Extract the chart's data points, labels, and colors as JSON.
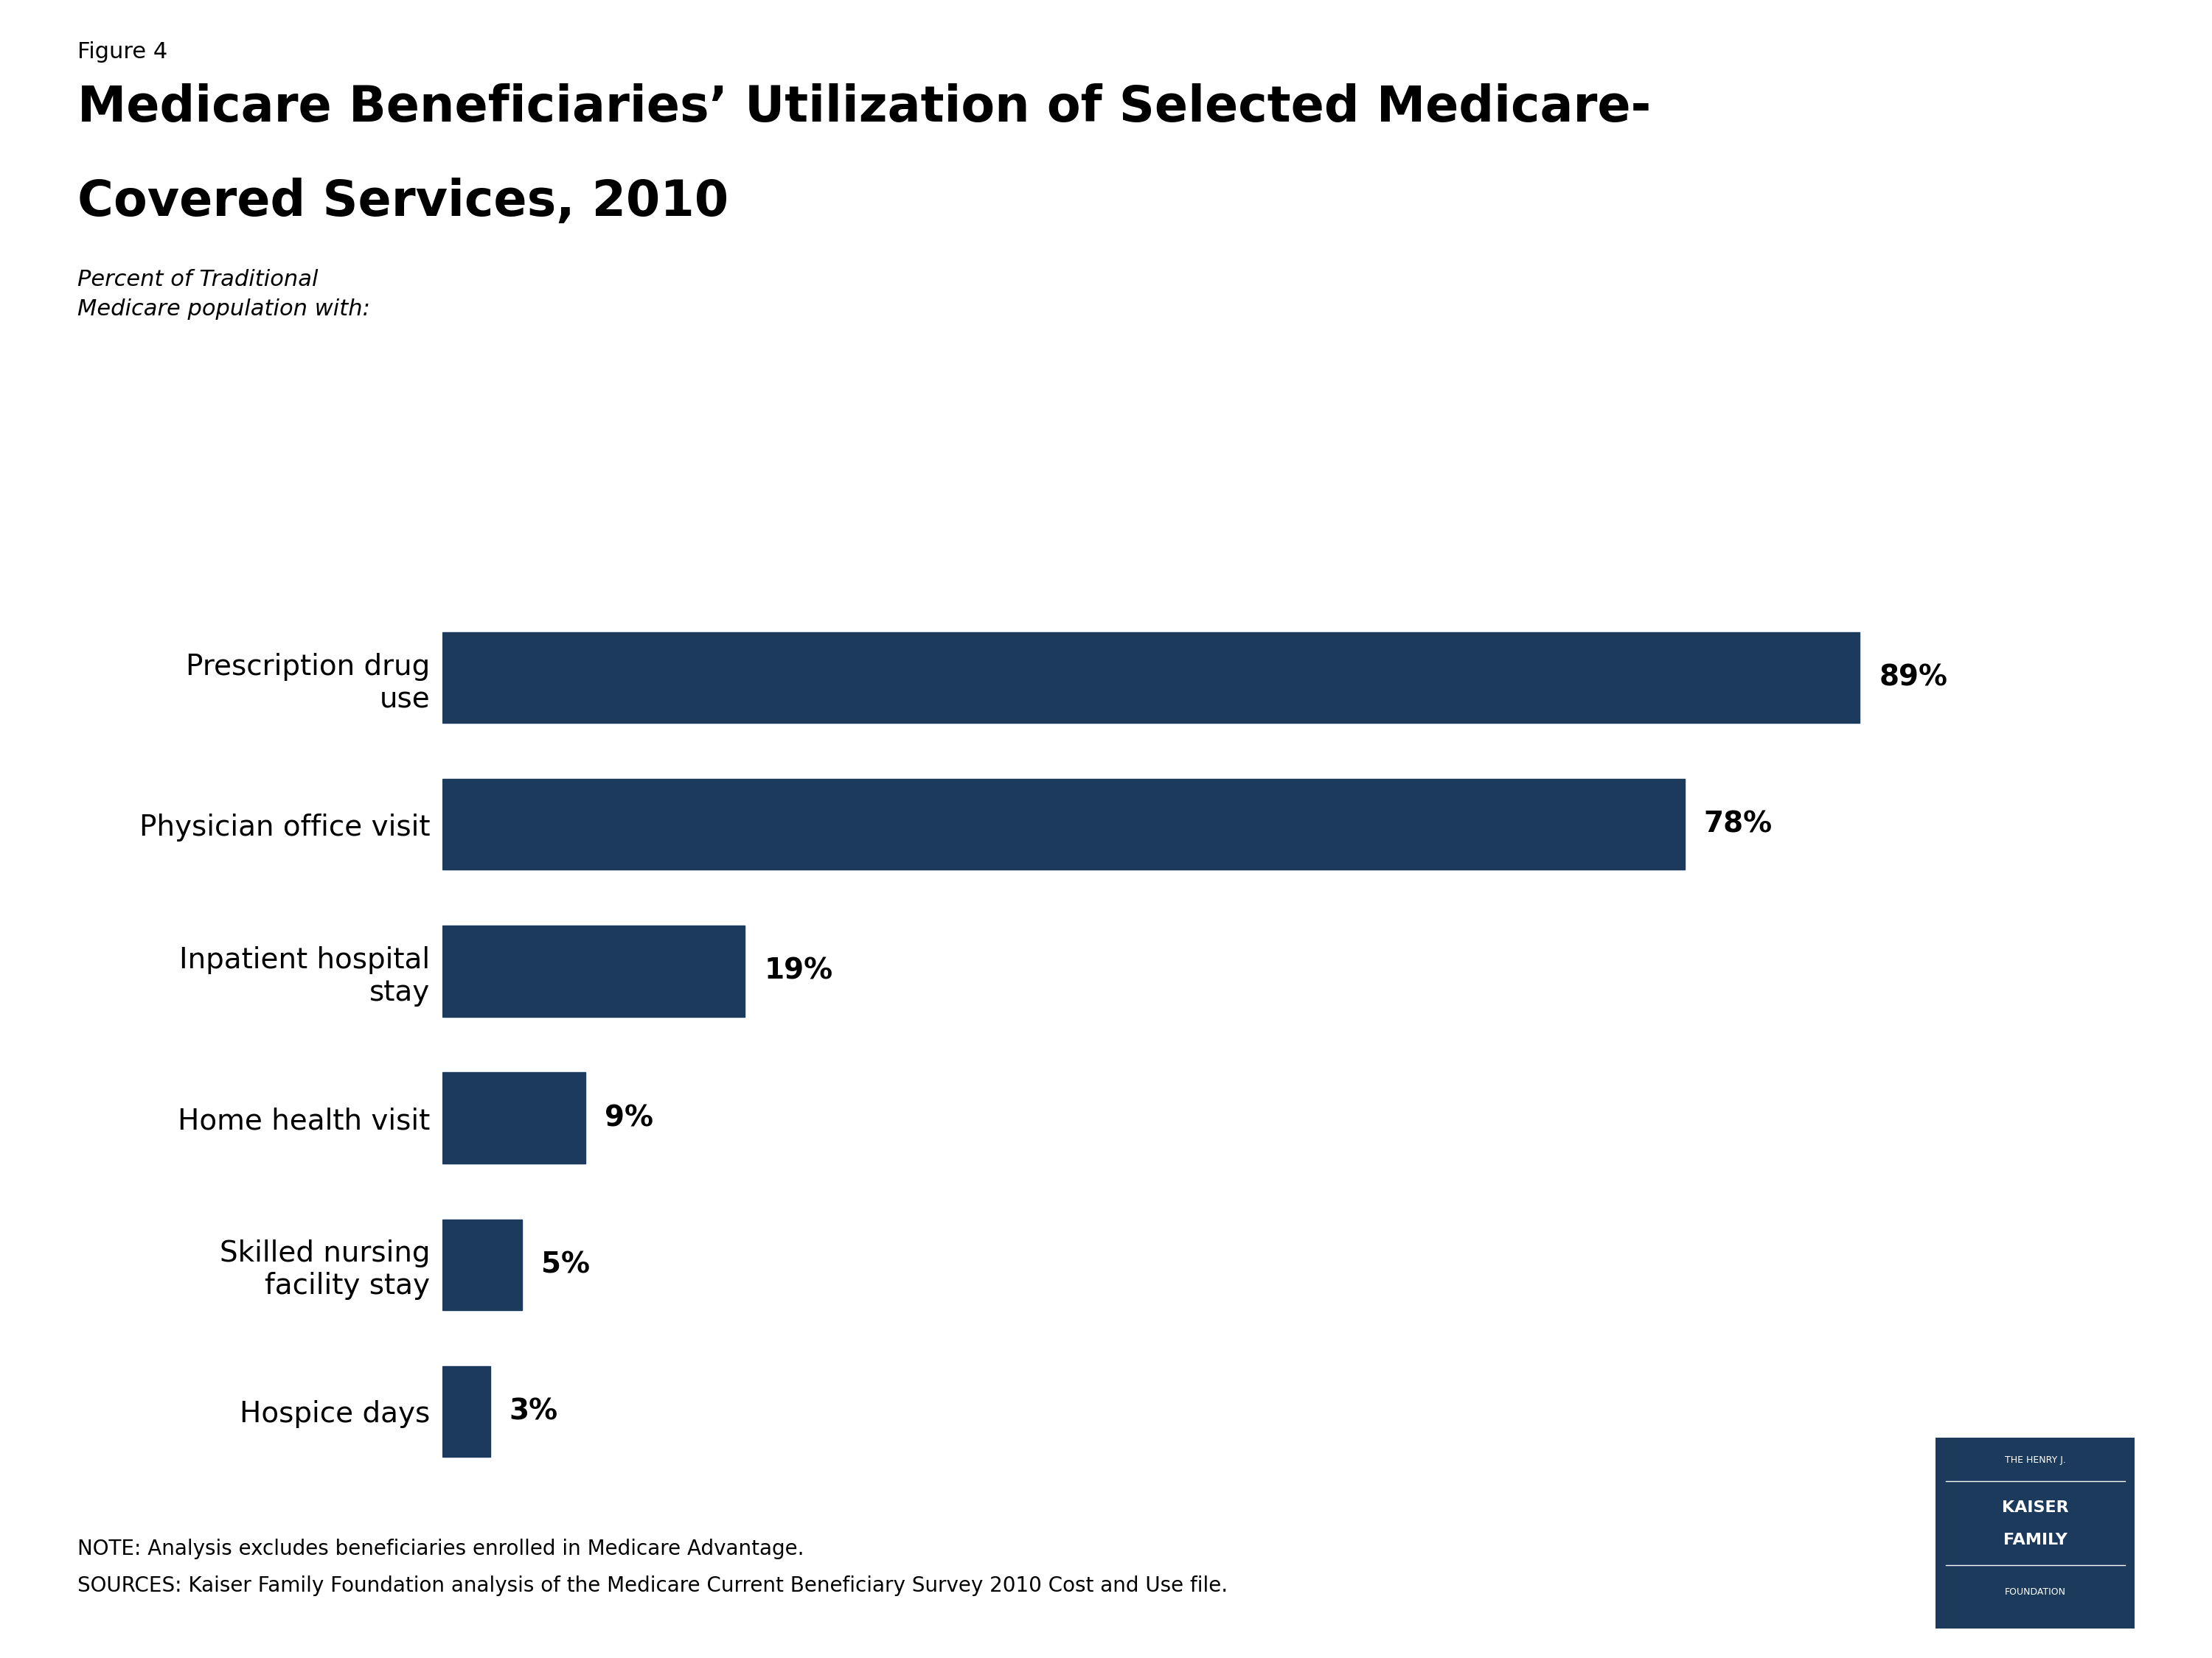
{
  "figure_label": "Figure 4",
  "title_line1": "Medicare Beneficiaries’ Utilization of Selected Medicare-",
  "title_line2": "Covered Services, 2010",
  "subtitle": "Percent of Traditional\nMedicare population with:",
  "categories": [
    "Prescription drug\nuse",
    "Physician office visit",
    "Inpatient hospital\nstay",
    "Home health visit",
    "Skilled nursing\nfacility stay",
    "Hospice days"
  ],
  "values": [
    89,
    78,
    19,
    9,
    5,
    3
  ],
  "labels": [
    "89%",
    "78%",
    "19%",
    "9%",
    "5%",
    "3%"
  ],
  "bar_color": "#1b3a5c",
  "background_color": "#ffffff",
  "note_line1": "NOTE: Analysis excludes beneficiaries enrolled in Medicare Advantage.",
  "note_line2": "SOURCES: Kaiser Family Foundation analysis of the Medicare Current Beneficiary Survey 2010 Cost and Use file.",
  "xlim": [
    0,
    100
  ],
  "title_fontsize": 48,
  "bar_label_fontsize": 28,
  "category_fontsize": 28,
  "note_fontsize": 20,
  "figure_label_fontsize": 22,
  "subtitle_fontsize": 22,
  "kaiser_box_color": "#1b3a5c",
  "kaiser_text_color": "#ffffff",
  "bar_height": 0.62,
  "bar_spacing": 1.0
}
